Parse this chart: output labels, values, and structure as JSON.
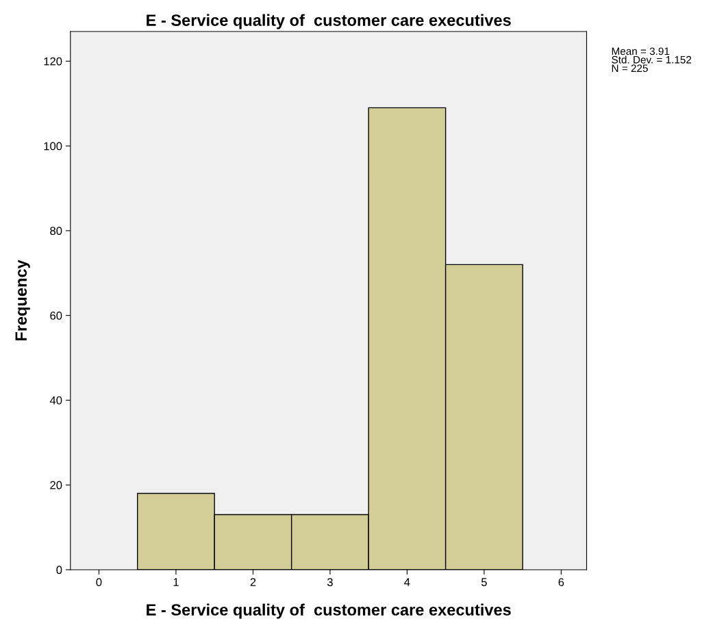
{
  "chart_data": {
    "type": "histogram",
    "title": "E - Service quality of  customer care executives",
    "xlabel": "E - Service quality of  customer care executives",
    "ylabel": "Frequency",
    "bins": [
      0.5,
      1.5,
      2.5,
      3.5,
      4.5,
      5.5
    ],
    "values": [
      18,
      13,
      13,
      109,
      72
    ],
    "color": "#d3ce97",
    "xlim": [
      -0.37,
      6.33
    ],
    "xticks": [
      0,
      1,
      2,
      3,
      4,
      5,
      6
    ],
    "ylim": [
      0,
      127
    ],
    "yticks": [
      0,
      20,
      40,
      60,
      80,
      100,
      120
    ],
    "grid": false,
    "legend": false,
    "annotations": [
      "Mean = 3.91",
      "Std. Dev. = 1.152",
      "N = 225"
    ]
  }
}
